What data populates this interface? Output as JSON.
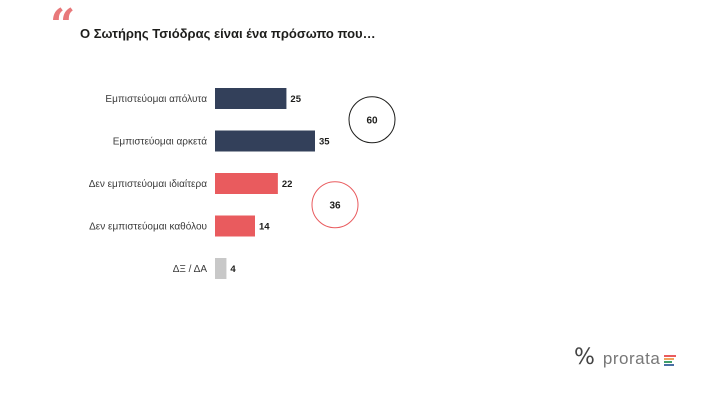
{
  "header": {
    "quote_mark": "“",
    "title": "Ο Σωτήρης Τσιόδρας είναι ένα πρόσωπο που…"
  },
  "chart_data": {
    "type": "bar",
    "orientation": "horizontal",
    "categories": [
      "Εμπιστεύομαι απόλυτα",
      "Εμπιστεύομαι αρκετά",
      "Δεν εμπιστεύομαι ιδιαίτερα",
      "Δεν εμπιστεύομαι καθόλου",
      "ΔΞ / ΔΑ"
    ],
    "values": [
      25,
      35,
      22,
      14,
      4
    ],
    "colors": [
      "#33405a",
      "#33405a",
      "#e95b5e",
      "#e95b5e",
      "#c8c8c8"
    ],
    "xlim": [
      0,
      35
    ],
    "grid": false,
    "annotations": [
      {
        "text": "60",
        "groups": [
          0,
          1
        ],
        "color": "#1d1d1b"
      },
      {
        "text": "36",
        "groups": [
          2,
          3
        ],
        "color": "#e95b5e"
      }
    ]
  },
  "branding": {
    "symbol": "%",
    "name": "prorata",
    "flag_colors": [
      "#e95b5e",
      "#f0a35e",
      "#3f9f6a",
      "#4a6fa5"
    ]
  }
}
